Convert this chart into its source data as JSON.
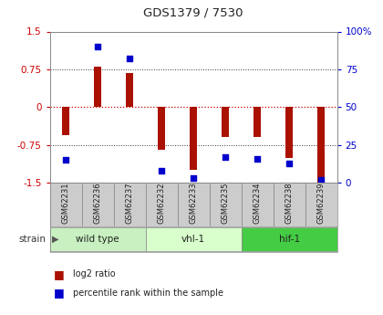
{
  "title": "GDS1379 / 7530",
  "samples": [
    "GSM62231",
    "GSM62236",
    "GSM62237",
    "GSM62232",
    "GSM62233",
    "GSM62235",
    "GSM62234",
    "GSM62238",
    "GSM62239"
  ],
  "log2_ratio": [
    -0.55,
    0.8,
    0.68,
    -0.85,
    -1.25,
    -0.6,
    -0.6,
    -1.0,
    -1.5
  ],
  "percentile_rank": [
    15,
    90,
    82,
    8,
    3,
    17,
    16,
    13,
    2
  ],
  "groups": [
    {
      "label": "wild type",
      "start": 0,
      "end": 3,
      "color": "#c8f0c0"
    },
    {
      "label": "vhl-1",
      "start": 3,
      "end": 6,
      "color": "#d8ffcc"
    },
    {
      "label": "hif-1",
      "start": 6,
      "end": 9,
      "color": "#44cc44"
    }
  ],
  "ylim": [
    -1.5,
    1.5
  ],
  "y_ticks_left": [
    -1.5,
    -0.75,
    0,
    0.75,
    1.5
  ],
  "y_ticks_right": [
    0,
    25,
    50,
    75,
    100
  ],
  "bar_color": "#aa1100",
  "dot_color": "#0000cc",
  "hline0_color": "#cc0000",
  "grid_color": "#333333",
  "sample_box_color": "#cccccc",
  "strain_label": "strain",
  "legend_log2": "log2 ratio",
  "legend_pct": "percentile rank within the sample",
  "bar_width": 0.25
}
